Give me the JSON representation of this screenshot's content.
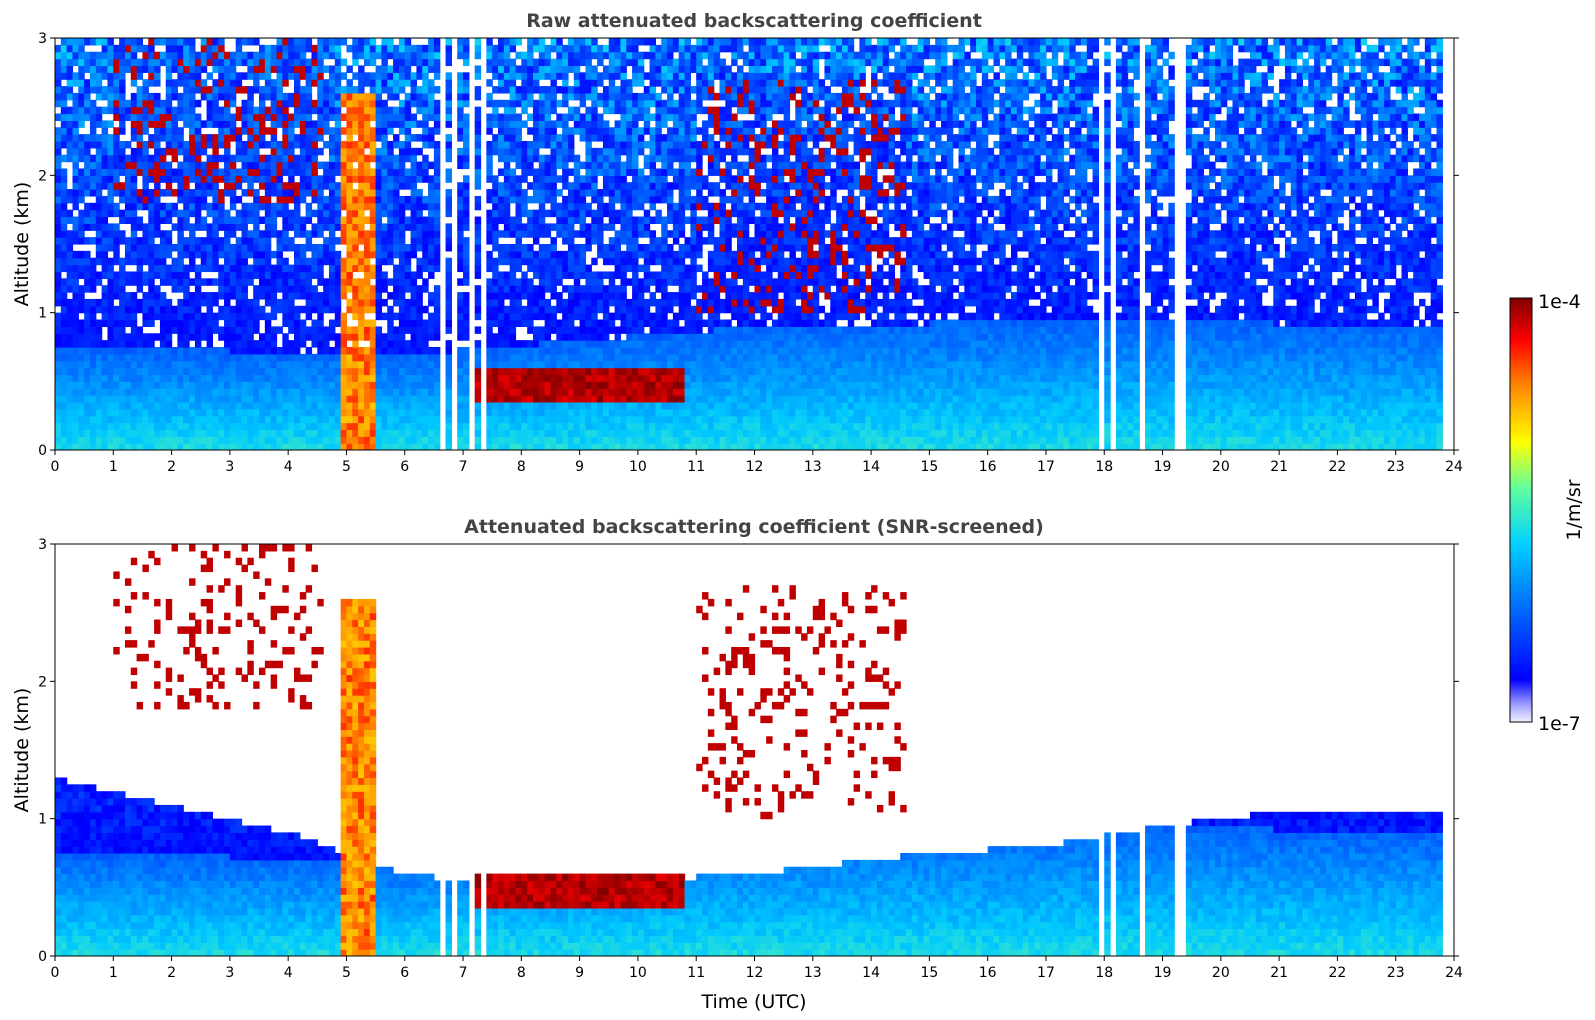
{
  "chart_data": [
    {
      "type": "heatmap",
      "title": "Raw attenuated backscattering coefficient",
      "xlabel": "",
      "ylabel": "Altitude (km)",
      "xlim": [
        0,
        24
      ],
      "ylim": [
        0,
        3
      ],
      "x_ticks": [
        "0",
        "1",
        "2",
        "3",
        "4",
        "5",
        "6",
        "7",
        "8",
        "9",
        "10",
        "11",
        "12",
        "13",
        "14",
        "15",
        "16",
        "17",
        "18",
        "19",
        "20",
        "21",
        "22",
        "23",
        "24"
      ],
      "y_ticks": [
        "0",
        "1",
        "2",
        "3"
      ],
      "data_extent_hours": [
        0,
        23.8
      ],
      "missing_data_hours": [
        [
          6.55,
          6.65
        ],
        [
          6.78,
          6.9
        ],
        [
          7.05,
          7.15
        ],
        [
          7.25,
          7.35
        ],
        [
          17.65,
          17.72
        ],
        [
          17.88,
          17.95
        ],
        [
          18.1,
          18.2
        ],
        [
          18.6,
          18.72
        ],
        [
          19.25,
          19.38
        ]
      ],
      "features": [
        {
          "name": "boundary layer aerosol",
          "altitude_top_km_by_hour": [
            [
              0,
              0.75
            ],
            [
              6,
              0.7
            ],
            [
              12,
              0.9
            ],
            [
              18,
              0.95
            ],
            [
              23.8,
              0.9
            ]
          ]
        },
        {
          "name": "cloud layer",
          "hours": [
            7.2,
            10.8
          ],
          "altitude_km": [
            0.35,
            0.6
          ]
        },
        {
          "name": "precipitation",
          "hours": [
            4.9,
            5.5
          ],
          "altitude_km": [
            0,
            2.6
          ]
        },
        {
          "name": "high cloud",
          "hours": [
            1.0,
            4.6
          ],
          "altitude_km": [
            1.8,
            3.0
          ]
        },
        {
          "name": "mid clouds",
          "hours": [
            11.0,
            14.6
          ],
          "altitude_km": [
            1.0,
            2.7
          ]
        }
      ]
    },
    {
      "type": "heatmap",
      "title": "Attenuated backscattering coefficient (SNR-screened)",
      "xlabel": "Time (UTC)",
      "ylabel": "Altitude (km)",
      "xlim": [
        0,
        24
      ],
      "ylim": [
        0,
        3
      ],
      "x_ticks": [
        "0",
        "1",
        "2",
        "3",
        "4",
        "5",
        "6",
        "7",
        "8",
        "9",
        "10",
        "11",
        "12",
        "13",
        "14",
        "15",
        "16",
        "17",
        "18",
        "19",
        "20",
        "21",
        "22",
        "23",
        "24"
      ],
      "y_ticks": [
        "0",
        "1",
        "2",
        "3"
      ],
      "data_extent_hours": [
        0,
        23.8
      ],
      "snr_mask_top_km_by_hour": [
        [
          0,
          1.3
        ],
        [
          2,
          1.1
        ],
        [
          4,
          0.9
        ],
        [
          6,
          0.6
        ],
        [
          7,
          0.55
        ],
        [
          10,
          0.55
        ],
        [
          12,
          0.6
        ],
        [
          15,
          0.75
        ],
        [
          17,
          0.8
        ],
        [
          19,
          0.95
        ],
        [
          21,
          1.05
        ],
        [
          23.8,
          1.05
        ]
      ]
    }
  ],
  "colorbar": {
    "label": "1/m/sr",
    "max_label": "1e-4",
    "min_label": "1e-7",
    "scale": "log",
    "range": [
      1e-07,
      0.0001
    ],
    "colormap": "jet"
  }
}
